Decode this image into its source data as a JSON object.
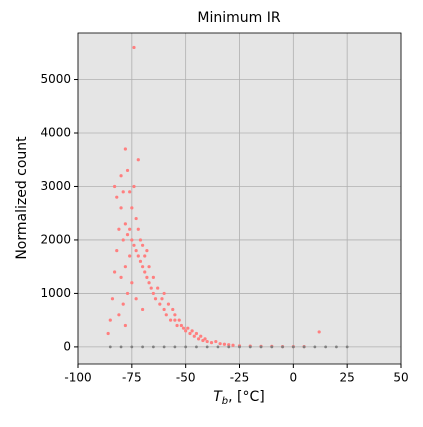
{
  "chart_data": {
    "type": "scatter",
    "title": "Minimum IR",
    "x_label": {
      "symbol": "T",
      "subscript": "b",
      "rest": ", [°C]"
    },
    "y_label": "Normalized count",
    "xlim": [
      -100,
      50
    ],
    "xticks": [
      -100,
      -75,
      -50,
      -25,
      0,
      25,
      50
    ],
    "ylim": [
      -320,
      5870
    ],
    "yticks": [
      0,
      1000,
      2000,
      3000,
      4000,
      5000
    ],
    "grid": true,
    "series": [
      {
        "color": "#ff7f7f",
        "x": [
          -86,
          -85,
          -84,
          -83,
          -83,
          -82,
          -82,
          -81,
          -81,
          -80,
          -80,
          -80,
          -79,
          -79,
          -79,
          -78,
          -78,
          -78,
          -78,
          -77,
          -77,
          -77,
          -76,
          -76,
          -76,
          -75,
          -75,
          -75,
          -74,
          -74,
          -74,
          -73,
          -73,
          -73,
          -72,
          -72,
          -72,
          -71,
          -71,
          -70,
          -70,
          -70,
          -69,
          -69,
          -68,
          -68,
          -67,
          -67,
          -66,
          -65,
          -65,
          -64,
          -63,
          -62,
          -61,
          -60,
          -60,
          -59,
          -58,
          -57,
          -56,
          -55,
          -55,
          -54,
          -53,
          -52,
          -51,
          -50,
          -49,
          -48,
          -47,
          -46,
          -45,
          -44,
          -43,
          -42,
          -41,
          -40,
          -38,
          -36,
          -34,
          -32,
          -30,
          -28,
          -25,
          -20,
          -15,
          -10,
          -5,
          0,
          5,
          12
        ],
        "values": [
          250,
          500,
          900,
          1400,
          3000,
          1800,
          2800,
          2200,
          600,
          2600,
          1300,
          3200,
          2000,
          2900,
          800,
          2300,
          3700,
          1500,
          400,
          2100,
          3300,
          1000,
          2200,
          2900,
          1700,
          2000,
          2600,
          1200,
          5600,
          1900,
          3000,
          1800,
          2400,
          900,
          3500,
          1700,
          2200,
          1600,
          2000,
          1500,
          1900,
          700,
          1400,
          1700,
          1300,
          1800,
          1200,
          1500,
          1100,
          1000,
          1300,
          900,
          1100,
          800,
          900,
          700,
          1000,
          600,
          800,
          500,
          700,
          500,
          600,
          400,
          500,
          400,
          350,
          300,
          350,
          250,
          300,
          200,
          250,
          150,
          200,
          120,
          150,
          100,
          80,
          100,
          60,
          50,
          40,
          30,
          20,
          15,
          10,
          10,
          5,
          5,
          5,
          280
        ]
      },
      {
        "color": "#808080",
        "x": [
          -85,
          -80,
          -75,
          -70,
          -65,
          -60,
          -55,
          -50,
          -45,
          -40,
          -35,
          -30,
          -25,
          -20,
          -15,
          -10,
          -5,
          0,
          5,
          10,
          15,
          20,
          25
        ],
        "values": [
          0,
          0,
          0,
          0,
          0,
          0,
          0,
          0,
          0,
          0,
          0,
          0,
          0,
          0,
          0,
          0,
          0,
          0,
          0,
          0,
          0,
          0,
          0
        ]
      }
    ]
  }
}
